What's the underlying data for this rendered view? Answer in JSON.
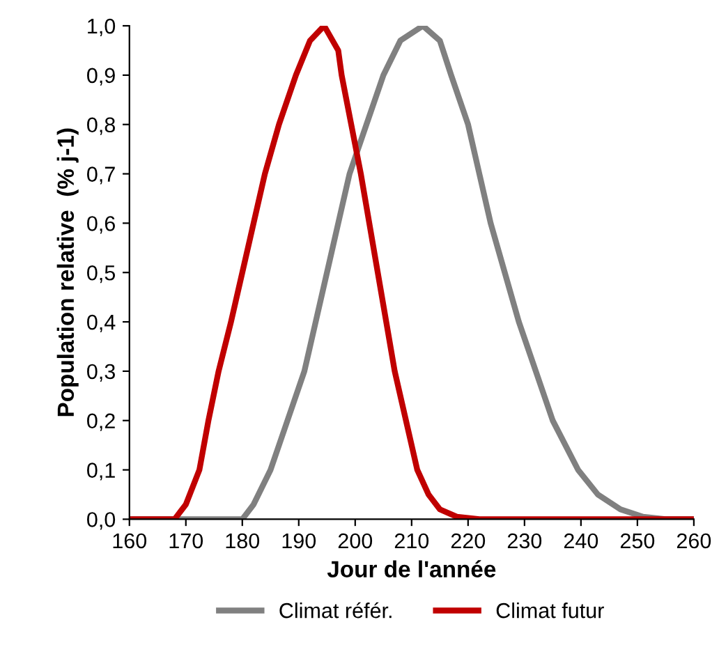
{
  "chart_data": {
    "type": "line",
    "xlabel": "Jour de l'année",
    "ylabel": "Population relative  (% j-1)",
    "xlim": [
      160,
      260
    ],
    "xticks": [
      160,
      170,
      180,
      190,
      200,
      210,
      220,
      230,
      240,
      250,
      260
    ],
    "ylim": [
      0,
      1
    ],
    "yticks": [
      {
        "value": 0,
        "label": "0,0"
      },
      {
        "value": 0.1,
        "label": "0,1"
      },
      {
        "value": 0.2,
        "label": "0,2"
      },
      {
        "value": 0.3,
        "label": "0,3"
      },
      {
        "value": 0.4,
        "label": "0,4"
      },
      {
        "value": 0.5,
        "label": "0,5"
      },
      {
        "value": 0.6,
        "label": "0,6"
      },
      {
        "value": 0.7,
        "label": "0,7"
      },
      {
        "value": 0.8,
        "label": "0,8"
      },
      {
        "value": 0.9,
        "label": "0,9"
      },
      {
        "value": 1,
        "label": "1,0"
      }
    ],
    "grid": false,
    "legend": "bottom",
    "marker": "none",
    "line_style": "solid",
    "series": [
      {
        "name": "Climat référ.",
        "color": "#808080",
        "x": [
          160,
          175,
          180,
          182,
          185,
          188,
          191,
          193,
          195,
          197,
          199,
          202,
          205,
          208,
          212,
          215,
          217,
          220,
          222,
          224,
          226.5,
          229,
          232,
          235,
          239.5,
          243,
          247,
          251,
          255,
          260
        ],
        "values": [
          0,
          0,
          0,
          0.03,
          0.1,
          0.2,
          0.3,
          0.4,
          0.5,
          0.6,
          0.7,
          0.8,
          0.9,
          0.97,
          1,
          0.97,
          0.9,
          0.8,
          0.7,
          0.6,
          0.5,
          0.4,
          0.3,
          0.2,
          0.1,
          0.05,
          0.02,
          0.005,
          0,
          0
        ]
      },
      {
        "name": "Climat futur",
        "color": "#c00000",
        "x": [
          160,
          168,
          170,
          172.4,
          174,
          175.8,
          178,
          180,
          182,
          184,
          186.5,
          189.5,
          192,
          194.5,
          197,
          197.6,
          199.3,
          201,
          202.5,
          204,
          205.5,
          207,
          209,
          211,
          213,
          215,
          218,
          222,
          260
        ],
        "values": [
          0,
          0,
          0.03,
          0.1,
          0.2,
          0.3,
          0.4,
          0.5,
          0.6,
          0.7,
          0.8,
          0.9,
          0.97,
          1,
          0.95,
          0.9,
          0.8,
          0.7,
          0.6,
          0.5,
          0.4,
          0.3,
          0.2,
          0.1,
          0.05,
          0.02,
          0.005,
          0,
          0
        ]
      }
    ]
  }
}
